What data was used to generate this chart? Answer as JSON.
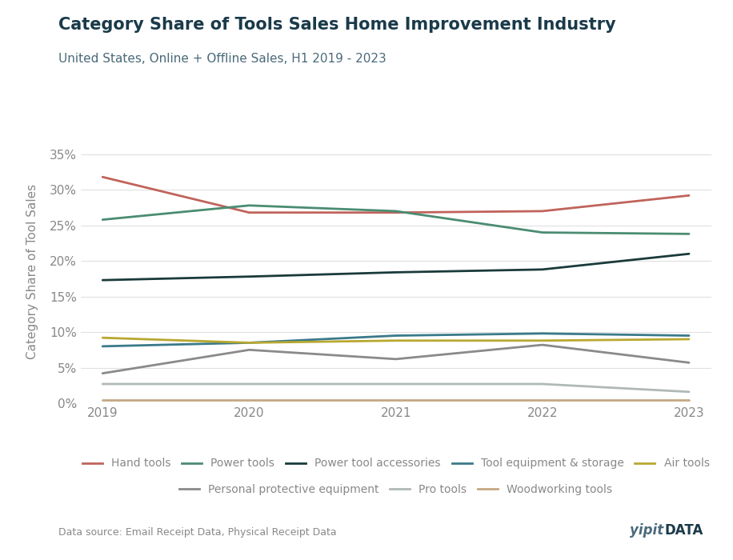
{
  "title": "Category Share of Tools Sales Home Improvement Industry",
  "subtitle": "United States, Online + Offline Sales, H1 2019 - 2023",
  "ylabel": "Category Share of Tool Sales",
  "data_source": "Data source: Email Receipt Data, Physical Receipt Data",
  "years": [
    2019,
    2020,
    2021,
    2022,
    2023
  ],
  "series": [
    {
      "name": "Hand tools",
      "values": [
        0.318,
        0.268,
        0.268,
        0.27,
        0.292
      ],
      "color": "#c0635b",
      "linewidth": 2.0
    },
    {
      "name": "Power tools",
      "values": [
        0.258,
        0.278,
        0.27,
        0.24,
        0.238
      ],
      "color": "#4a8c72",
      "linewidth": 2.0
    },
    {
      "name": "Power tool accessories",
      "values": [
        0.173,
        0.178,
        0.184,
        0.188,
        0.21
      ],
      "color": "#1a3a3a",
      "linewidth": 2.0
    },
    {
      "name": "Tool equipment & storage",
      "values": [
        0.08,
        0.085,
        0.095,
        0.098,
        0.095
      ],
      "color": "#3a7a8a",
      "linewidth": 2.0
    },
    {
      "name": "Air tools",
      "values": [
        0.092,
        0.085,
        0.088,
        0.088,
        0.09
      ],
      "color": "#b8a830",
      "linewidth": 2.0
    },
    {
      "name": "Personal protective equipment",
      "values": [
        0.042,
        0.075,
        0.062,
        0.082,
        0.057
      ],
      "color": "#8a8a8a",
      "linewidth": 2.0
    },
    {
      "name": "Pro tools",
      "values": [
        0.027,
        0.027,
        0.027,
        0.027,
        0.016
      ],
      "color": "#b0b8b8",
      "linewidth": 2.0
    },
    {
      "name": "Woodworking tools",
      "values": [
        0.005,
        0.005,
        0.005,
        0.005,
        0.005
      ],
      "color": "#c4a882",
      "linewidth": 2.0
    }
  ],
  "ylim": [
    0,
    0.37
  ],
  "yticks": [
    0.0,
    0.05,
    0.1,
    0.15,
    0.2,
    0.25,
    0.3,
    0.35
  ],
  "background_color": "#ffffff",
  "grid_color": "#e0e0e0",
  "title_color": "#1a3a4a",
  "subtitle_color": "#4a6a7a",
  "axis_color": "#888888",
  "legend_row1": [
    "Hand tools",
    "Power tools",
    "Power tool accessories",
    "Tool equipment & storage",
    "Air tools"
  ],
  "legend_row2": [
    "Personal protective equipment",
    "Pro tools",
    "Woodworking tools"
  ],
  "yipit_color": "#4a6a7a",
  "data_color": "#1a3a4a"
}
